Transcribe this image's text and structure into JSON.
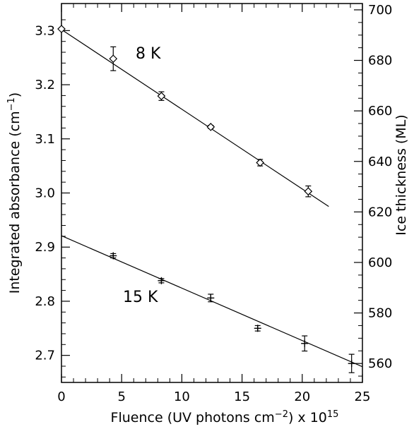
{
  "chart_data": {
    "type": "scatter",
    "x_axis": {
      "label_prefix": "Fluence (UV photons cm",
      "label_exp": "−2",
      "label_suffix": ") x 10",
      "label_power": "15",
      "range": [
        0,
        25
      ],
      "ticks": [
        "0",
        "5",
        "10",
        "15",
        "20",
        "25"
      ]
    },
    "y_left_axis": {
      "label_prefix": "Integrated absorbance (cm",
      "label_exp": "−1",
      "label_suffix": ")",
      "range": [
        2.65,
        3.35
      ],
      "ticks": [
        "2.7",
        "2.8",
        "2.9",
        "3.0",
        "3.1",
        "3.2",
        "3.3"
      ]
    },
    "y_right_axis": {
      "label": "Ice thickness (ML)",
      "range": [
        552.5,
        702.5
      ],
      "ticks": [
        "560",
        "580",
        "600",
        "620",
        "640",
        "660",
        "680",
        "700"
      ]
    },
    "series": [
      {
        "name": "8 K",
        "marker": "diamond",
        "points": [
          {
            "x": 0.0,
            "y": 3.303,
            "err": 0.0
          },
          {
            "x": 4.3,
            "y": 3.248,
            "err": 0.022
          },
          {
            "x": 8.3,
            "y": 3.179,
            "err": 0.008
          },
          {
            "x": 12.4,
            "y": 3.122,
            "err": 0.003
          },
          {
            "x": 16.5,
            "y": 3.056,
            "err": 0.006
          },
          {
            "x": 20.5,
            "y": 3.003,
            "err": 0.01
          }
        ],
        "fit": {
          "x0": 0,
          "y0": 3.302,
          "x1": 22.2,
          "y1": 2.975
        }
      },
      {
        "name": "15 K",
        "marker": "plus",
        "points": [
          {
            "x": 4.3,
            "y": 2.884,
            "err": 0.004
          },
          {
            "x": 8.3,
            "y": 2.838,
            "err": 0.004
          },
          {
            "x": 12.4,
            "y": 2.806,
            "err": 0.007
          },
          {
            "x": 16.3,
            "y": 2.75,
            "err": 0.005
          },
          {
            "x": 20.2,
            "y": 2.722,
            "err": 0.014
          },
          {
            "x": 24.1,
            "y": 2.685,
            "err": 0.017
          }
        ],
        "fit": {
          "x0": 0,
          "y0": 2.921,
          "x1": 25,
          "y1": 2.679
        }
      }
    ],
    "grid": false,
    "legend": "inline labels"
  }
}
